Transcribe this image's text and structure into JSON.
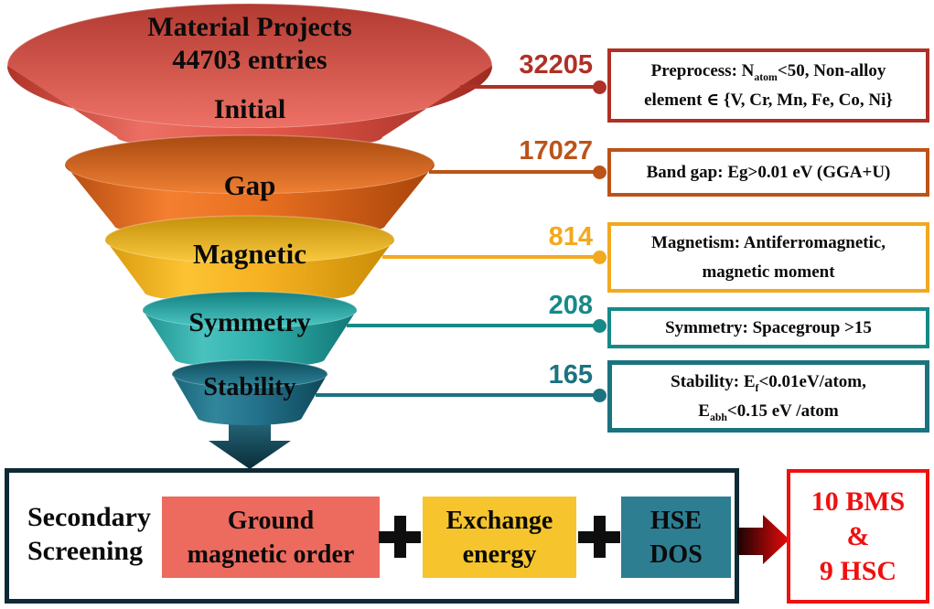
{
  "funnel": {
    "source_line1": "Material Projects",
    "source_line2": "44703 entries",
    "stages": [
      {
        "label": "Initial",
        "count": "32205",
        "color": "#DC5348"
      },
      {
        "label": "Gap",
        "count": "17027",
        "color": "#E26A1E"
      },
      {
        "label": "Magnetic",
        "count": "814",
        "color": "#F5B01F"
      },
      {
        "label": "Symmetry",
        "count": "208",
        "color": "#2FAFAC"
      },
      {
        "label": "Stability",
        "count": "165",
        "color": "#226F84"
      }
    ]
  },
  "callouts": [
    {
      "number": "32205",
      "accent": "#AF3026",
      "lines": [
        [
          {
            "t": "Preprocess: N"
          },
          {
            "sub": "atom"
          },
          {
            "t": "<50, Non-alloy"
          }
        ],
        [
          {
            "t": "element ∈ {V, Cr, Mn, Fe, Co, Ni}"
          }
        ]
      ]
    },
    {
      "number": "17027",
      "accent": "#BC5318",
      "lines": [
        [
          {
            "t": "Band gap: Eg>0.01 eV (GGA+U)"
          }
        ]
      ]
    },
    {
      "number": "814",
      "accent": "#F2A91E",
      "lines": [
        [
          {
            "t": "Magnetism: Antiferromagnetic,"
          }
        ],
        [
          {
            "t": "magnetic moment"
          }
        ]
      ]
    },
    {
      "number": "208",
      "accent": "#178989",
      "lines": [
        [
          {
            "t": "Symmetry: Spacegroup >15"
          }
        ]
      ]
    },
    {
      "number": "165",
      "accent": "#1B7380",
      "lines": [
        [
          {
            "t": "Stability: E"
          },
          {
            "sub": "f"
          },
          {
            "t": "<0.01eV/atom,"
          }
        ],
        [
          {
            "t": "E"
          },
          {
            "sub": "abh"
          },
          {
            "t": "<0.15 eV /atom"
          }
        ]
      ]
    }
  ],
  "secondary": {
    "label_line1": "Secondary",
    "label_line2": "Screening",
    "operator": "+",
    "box_border": "#0D2A35",
    "items": [
      {
        "line1": "Ground",
        "line2": "magnetic order",
        "color": "#ED6A5E"
      },
      {
        "line1": "Exchange",
        "line2": "energy",
        "color": "#F6C52D"
      },
      {
        "line1": "HSE",
        "line2": "DOS",
        "color": "#2E7E92"
      }
    ],
    "result": {
      "line1": "10 BMS",
      "line2": "&",
      "line3": "9 HSC",
      "color": "#F01010"
    }
  },
  "icons": {
    "down-arrow": "funnel-output-arrow",
    "right-arrow": "result-arrow",
    "plus": "+"
  }
}
